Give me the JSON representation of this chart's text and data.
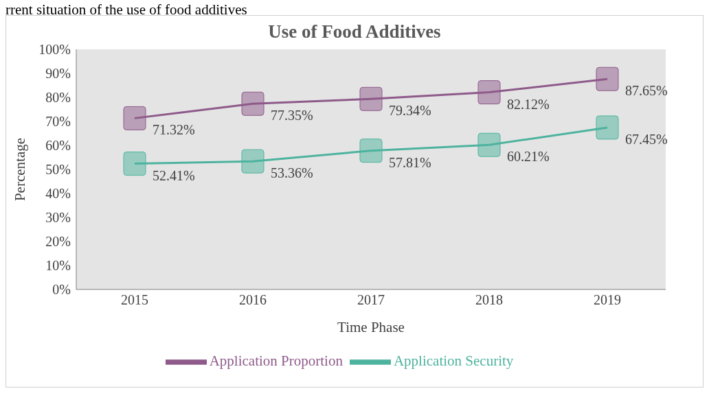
{
  "chart_data": {
    "type": "line",
    "title": "Use of Food Additives",
    "xlabel": "Time Phase",
    "ylabel": "Percentage",
    "annotations": [
      "rrent situation of the use of food additives"
    ],
    "categories": [
      "2015",
      "2016",
      "2017",
      "2018",
      "2019"
    ],
    "series": [
      {
        "name": "Application Proportion",
        "color": "#8e5a8a",
        "values": [
          71.32,
          77.35,
          79.34,
          82.12,
          87.65
        ],
        "value_labels": [
          "71.32%",
          "77.35%",
          "79.34%",
          "82.12%",
          "87.65%"
        ]
      },
      {
        "name": "Application Security",
        "color": "#4db39e",
        "values": [
          52.41,
          53.36,
          57.81,
          60.21,
          67.45
        ],
        "value_labels": [
          "52.41%",
          "53.36%",
          "57.81%",
          "60.21%",
          "67.45%"
        ]
      }
    ],
    "ylim": [
      0,
      100
    ],
    "yticks": [
      {
        "value": 0,
        "label": "0%"
      },
      {
        "value": 10,
        "label": "10%"
      },
      {
        "value": 20,
        "label": "20%"
      },
      {
        "value": 30,
        "label": "30%"
      },
      {
        "value": 40,
        "label": "40%"
      },
      {
        "value": 50,
        "label": "50%"
      },
      {
        "value": 60,
        "label": "60%"
      },
      {
        "value": 70,
        "label": "70%"
      },
      {
        "value": 80,
        "label": "80%"
      },
      {
        "value": 90,
        "label": "90%"
      },
      {
        "value": 100,
        "label": "100%"
      }
    ],
    "grid": false,
    "legend": "bottom",
    "marker": "square",
    "line_style": "solid"
  }
}
